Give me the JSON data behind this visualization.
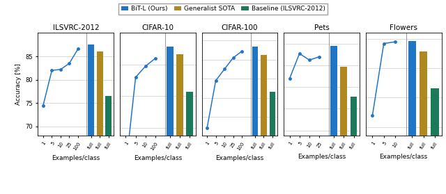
{
  "subplots": [
    {
      "title": "ILSVRC-2012",
      "line_x_labels": [
        "1",
        "5",
        "10",
        "25",
        "100"
      ],
      "line_y": [
        74.5,
        82.0,
        82.2,
        83.5,
        86.6
      ],
      "bar_vals": [
        87.5,
        86.0,
        76.5
      ],
      "ylim": [
        68,
        90
      ],
      "yticks": [
        70,
        75,
        80,
        85
      ]
    },
    {
      "title": "CIFAR-10",
      "line_x_labels": [
        "1",
        "5",
        "10",
        "100"
      ],
      "line_y": [
        91.5,
        97.2,
        97.9,
        98.4
      ],
      "bar_vals": [
        99.15,
        98.65,
        96.3
      ],
      "ylim": [
        93.5,
        100
      ],
      "yticks": [
        94,
        96,
        98
      ]
    },
    {
      "title": "CIFAR-100",
      "line_x_labels": [
        "1",
        "5",
        "10",
        "25",
        "100"
      ],
      "line_y": [
        67.0,
        79.5,
        82.5,
        85.5,
        87.2
      ],
      "bar_vals": [
        88.5,
        86.2,
        76.5
      ],
      "ylim": [
        65,
        92
      ],
      "yticks": [
        70,
        75,
        80,
        85,
        90
      ]
    },
    {
      "title": "Pets",
      "line_x_labels": [
        "1",
        "5",
        "10",
        "25"
      ],
      "line_y": [
        94.8,
        97.1,
        96.5,
        96.8
      ],
      "bar_vals": [
        97.8,
        95.9,
        93.1
      ],
      "ylim": [
        89.5,
        99
      ],
      "yticks": [
        90,
        92,
        94,
        96,
        98
      ]
    },
    {
      "title": "Flowers",
      "line_x_labels": [
        "1",
        "5",
        "10"
      ],
      "line_y": [
        87.0,
        99.2,
        99.5
      ],
      "bar_vals": [
        99.65,
        97.8,
        91.6
      ],
      "ylim": [
        83.5,
        101
      ],
      "yticks": [
        85,
        90,
        95,
        100
      ]
    }
  ],
  "line_color": "#2175c5",
  "bar_color_bit": "#2175c5",
  "bar_color_sota": "#b08820",
  "bar_color_baseline": "#1a7a5a",
  "legend_labels": [
    "BiT-L (Ours)",
    "Generalist SOTA",
    "Baseline (ILSVRC-2012)"
  ],
  "ylabel": "Accuracy [%]",
  "xlabel": "Examples/class"
}
